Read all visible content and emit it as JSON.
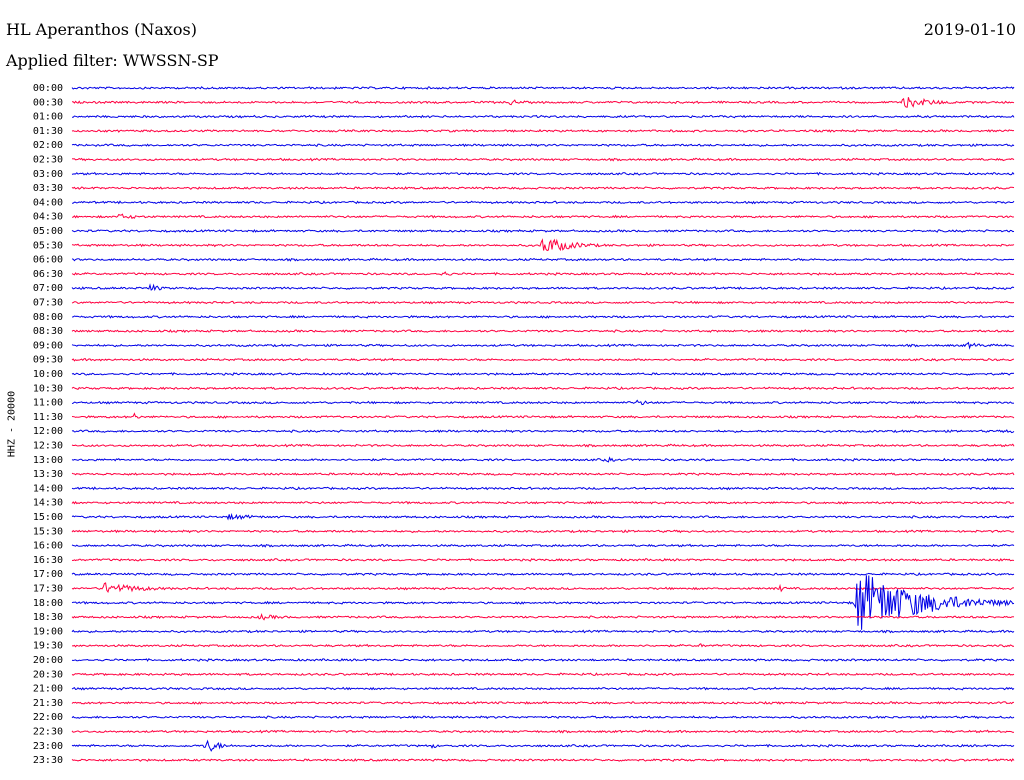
{
  "header": {
    "station": "HL Aperanthos (Naxos)",
    "date": "2019-01-10",
    "filter": "Applied filter: WWSSN-SP"
  },
  "channel_label": "HHZ - 20000",
  "colors": {
    "even_trace": "#0000e6",
    "odd_trace": "#ff0040"
  },
  "chart_data": {
    "type": "line",
    "title": "HL Aperanthos (Naxos)",
    "subtitle": "Applied filter: WWSSN-SP",
    "ylabel": "HHZ - 20000",
    "row_labels": [
      "00:00",
      "00:30",
      "01:00",
      "01:30",
      "02:00",
      "02:30",
      "03:00",
      "03:30",
      "04:00",
      "04:30",
      "05:00",
      "05:30",
      "06:00",
      "06:30",
      "07:00",
      "07:30",
      "08:00",
      "08:30",
      "09:00",
      "09:30",
      "10:00",
      "10:30",
      "11:00",
      "11:30",
      "12:00",
      "12:30",
      "13:00",
      "13:30",
      "14:00",
      "14:30",
      "15:00",
      "15:30",
      "16:00",
      "16:30",
      "17:00",
      "17:30",
      "18:00",
      "18:30",
      "19:00",
      "19:30",
      "20:00",
      "20:30",
      "21:00",
      "21:30",
      "22:00",
      "22:30",
      "23:00",
      "23:30"
    ],
    "row_duration_minutes": 30,
    "events": [
      {
        "row": "00:30",
        "minute": 26.5,
        "amplitude": 6,
        "duration_min": 1.5
      },
      {
        "row": "00:30",
        "minute": 14.0,
        "amplitude": 4,
        "duration_min": 0.3
      },
      {
        "row": "05:30",
        "minute": 15.0,
        "amplitude": 9,
        "duration_min": 1.5
      },
      {
        "row": "04:30",
        "minute": 1.5,
        "amplitude": 3,
        "duration_min": 1.2
      },
      {
        "row": "06:30",
        "minute": 11.8,
        "amplitude": 3,
        "duration_min": 0.5
      },
      {
        "row": "07:00",
        "minute": 2.5,
        "amplitude": 4,
        "duration_min": 0.6
      },
      {
        "row": "09:00",
        "minute": 28.5,
        "amplitude": 3,
        "duration_min": 1.0
      },
      {
        "row": "11:00",
        "minute": 18.0,
        "amplitude": 3,
        "duration_min": 0.8
      },
      {
        "row": "11:30",
        "minute": 2.0,
        "amplitude": 4,
        "duration_min": 0.2
      },
      {
        "row": "12:00",
        "minute": 29.8,
        "amplitude": 4,
        "duration_min": 0.2
      },
      {
        "row": "13:00",
        "minute": 17.0,
        "amplitude": 3,
        "duration_min": 0.5
      },
      {
        "row": "15:00",
        "minute": 5.0,
        "amplitude": 3,
        "duration_min": 1.8
      },
      {
        "row": "17:30",
        "minute": 1.0,
        "amplitude": 6,
        "duration_min": 2.0
      },
      {
        "row": "17:30",
        "minute": 22.5,
        "amplitude": 4,
        "duration_min": 0.3
      },
      {
        "row": "18:00",
        "minute": 25.0,
        "amplitude": 34,
        "duration_min": 3.0
      },
      {
        "row": "18:30",
        "minute": 6.0,
        "amplitude": 3,
        "duration_min": 1.2
      },
      {
        "row": "19:30",
        "minute": 20.0,
        "amplitude": 2,
        "duration_min": 0.6
      },
      {
        "row": "23:00",
        "minute": 4.3,
        "amplitude": 7,
        "duration_min": 0.7
      },
      {
        "row": "23:00",
        "minute": 11.5,
        "amplitude": 3,
        "duration_min": 0.2
      }
    ]
  }
}
